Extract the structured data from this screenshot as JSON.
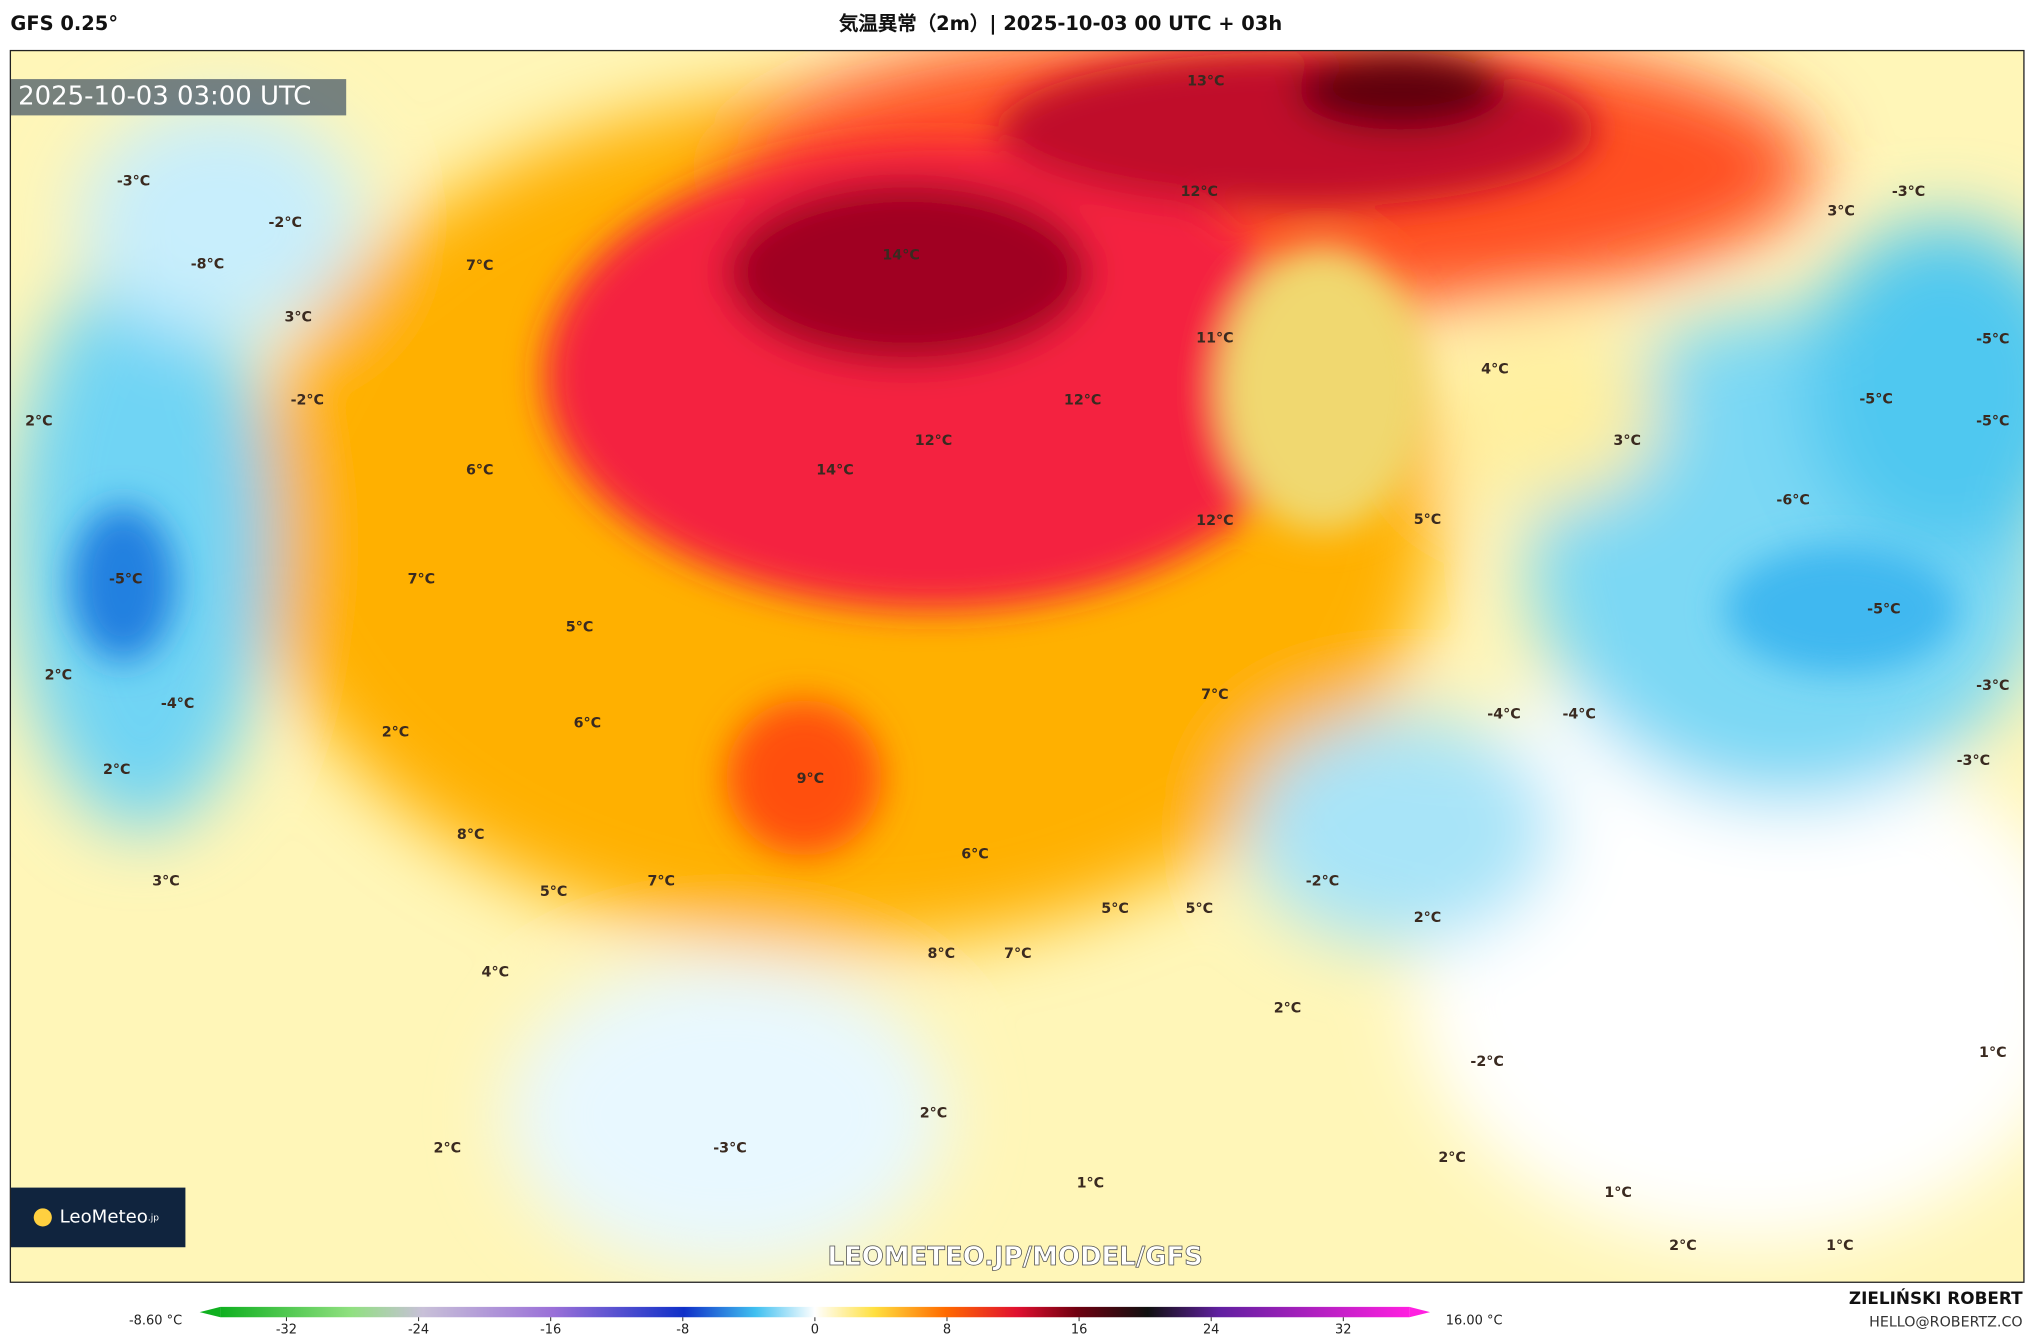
{
  "header": {
    "model": "GFS 0.25°",
    "title": "気温異常（2m）| 2025-10-03 00 UTC + 03h"
  },
  "map": {
    "timestamp": "2025-10-03 03:00 UTC",
    "watermark": "LEOMETEO.JP/MODEL/GFS",
    "logo": "LeoMeteo",
    "logo_suffix": ".jp",
    "labels": [
      "13°C",
      "12°C",
      "14°C",
      "11°C",
      "12°C",
      "12°C",
      "14°C",
      "12°C",
      "7°C",
      "3°C",
      "-2°C",
      "6°C",
      "7°C",
      "5°C",
      "6°C",
      "2°C",
      "9°C",
      "8°C",
      "5°C",
      "7°C",
      "6°C",
      "4°C",
      "8°C",
      "7°C",
      "5°C",
      "5°C",
      "7°C",
      "5°C",
      "4°C",
      "3°C",
      "-6°C",
      "-5°C",
      "-5°C",
      "-5°C",
      "-3°C",
      "3°C",
      "-5°C",
      "-3°C",
      "-3°C",
      "-4°C",
      "-4°C",
      "-2°C",
      "2°C",
      "2°C",
      "-2°C",
      "1°C",
      "2°C",
      "1°C",
      "2°C",
      "1°C",
      "1°C",
      "-3°C",
      "2°C",
      "2°C",
      "3°C",
      "2°C",
      "-4°C",
      "2°C",
      "-5°C",
      "2°C",
      "-3°C",
      "-2°C",
      "-8°C"
    ]
  },
  "colorbar": {
    "min_label": "-8.60 °C",
    "max_label": "16.00 °C",
    "range": [
      -36,
      36
    ],
    "ticks": [
      -32,
      -24,
      -16,
      -8,
      0,
      8,
      16,
      24,
      32
    ]
  },
  "credit": {
    "author": "ZIELIŃSKI ROBERT",
    "email": "HELLO@ROBERTZ.CO"
  }
}
